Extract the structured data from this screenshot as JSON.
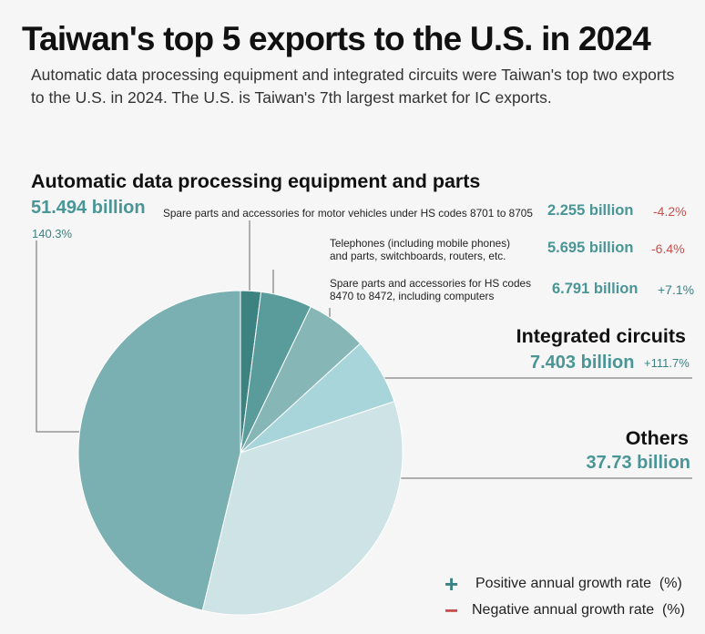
{
  "title": "Taiwan's top 5 exports to the U.S. in 2024",
  "subtitle": "Automatic data processing equipment and integrated circuits were Taiwan's top two exports to the U.S. in 2024. The U.S. is Taiwan's 7th largest market for IC exports.",
  "colors": {
    "adp": "#7bb0b2",
    "others": "#cde3e5",
    "ic": "#a7d5da",
    "spare_8470": "#86b6b6",
    "telephones": "#5a9c9b",
    "vehicle_parts": "#3c8280",
    "positive": "#3a8283",
    "negative": "#c7504c",
    "line": "#666666"
  },
  "chart_data": {
    "type": "pie",
    "title": "Taiwan's top 5 exports to the U.S. in 2024",
    "unit": "billion",
    "slices": [
      {
        "key": "vehicle_parts",
        "label": "Spare parts and accessories for motor vehicles under HS codes 8701 to 8705",
        "value": 2.255,
        "value_text": "2.255 billion",
        "growth": "-4.2%"
      },
      {
        "key": "telephones",
        "label": "Telephones (including mobile phones) and parts, switchboards, routers, etc.",
        "value": 5.695,
        "value_text": "5.695 billion",
        "growth": "-6.4%"
      },
      {
        "key": "spare_8470",
        "label": "Spare parts and accessories for HS codes 8470 to 8472, including computers",
        "value": 6.791,
        "value_text": "6.791 billion",
        "growth": "+7.1%"
      },
      {
        "key": "ic",
        "label": "Integrated circuits",
        "value": 7.403,
        "value_text": "7.403 billion",
        "growth": "+111.7%"
      },
      {
        "key": "others",
        "label": "Others",
        "value": 37.73,
        "value_text": "37.73 billion",
        "growth": ""
      },
      {
        "key": "adp",
        "label": "Automatic data processing equipment and parts",
        "value": 51.494,
        "value_text": "51.494 billion",
        "growth": "140.3%"
      }
    ],
    "labels": {
      "adp": {
        "label": "Automatic data processing equipment and parts",
        "value": "51.494 billion",
        "growth": "140.3%"
      },
      "vehicle_parts": {
        "label": "Spare parts and accessories for motor vehicles under HS codes 8701 to 8705",
        "value": "2.255 billion",
        "growth": "-4.2%"
      },
      "telephones": {
        "line1": "Telephones (including mobile phones)",
        "line2": "and parts, switchboards, routers, etc.",
        "value": "5.695 billion",
        "growth": "-6.4%"
      },
      "spare_8470": {
        "line1": "Spare parts and accessories for HS codes",
        "line2": "8470 to 8472, including computers",
        "value": "6.791 billion",
        "growth": "+7.1%"
      },
      "ic": {
        "label": "Integrated circuits",
        "value": "7.403 billion",
        "growth": "+111.7%"
      },
      "others": {
        "label": "Others",
        "value": "37.73 billion"
      }
    }
  },
  "legend": {
    "positive_symbol": "+",
    "negative_symbol": "−",
    "positive_text": "Positive annual growth rate  (%)",
    "negative_text": "Negative annual growth rate  (%)"
  }
}
